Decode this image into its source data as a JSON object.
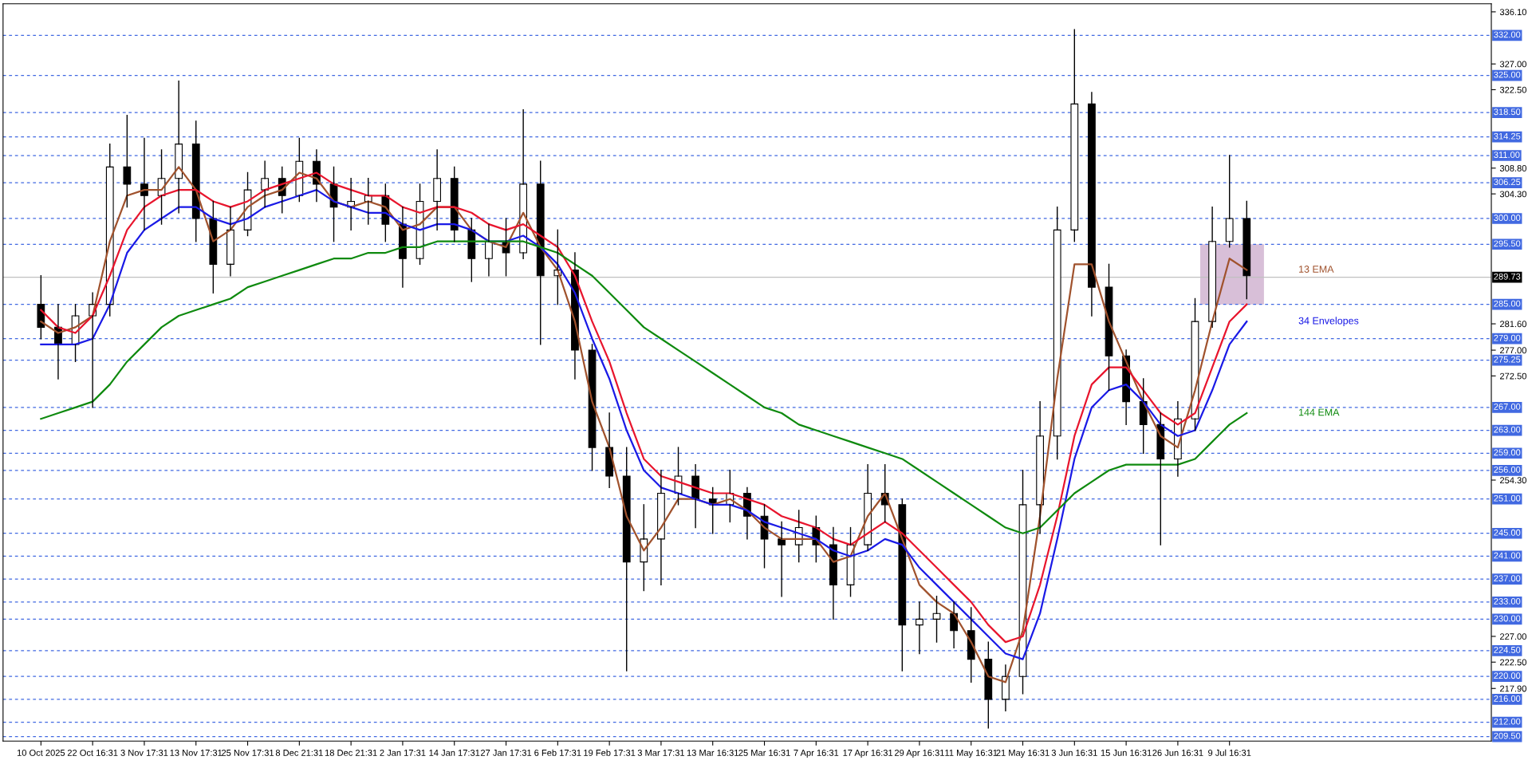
{
  "chart_data": {
    "type": "candlestick",
    "categories": [
      "10 Oct 2025",
      null,
      null,
      "22 Oct 16:31",
      null,
      null,
      "3 Nov 17:31",
      null,
      null,
      "13 Nov 17:31",
      null,
      null,
      "25 Nov 17:31",
      null,
      null,
      "8 Dec 21:31",
      null,
      null,
      "18 Dec 21:31",
      null,
      null,
      "2 Jan 17:31",
      null,
      null,
      "14 Jan 17:31",
      null,
      null,
      "27 Jan 17:31",
      null,
      null,
      "6 Feb 17:31",
      null,
      null,
      "19 Feb 17:31",
      null,
      null,
      "3 Mar 17:31",
      null,
      null,
      "13 Mar 16:31",
      null,
      null,
      "25 Mar 16:31",
      null,
      null,
      "7 Apr 16:31",
      null,
      null,
      "17 Apr 16:31",
      null,
      null,
      "29 Apr 16:31",
      null,
      null,
      "11 May 16:31",
      null,
      null,
      "21 May 16:31",
      null,
      null,
      "3 Jun 16:31",
      null,
      null,
      "15 Jun 16:31",
      null,
      null,
      "26 Jun 16:31",
      null,
      null,
      "9 Jul 16:31",
      null
    ],
    "ohlc": [
      [
        285,
        290,
        279,
        281
      ],
      [
        281,
        285,
        272,
        278
      ],
      [
        278,
        285,
        275,
        283
      ],
      [
        283,
        287,
        267,
        285
      ],
      [
        285,
        313,
        283,
        309
      ],
      [
        309,
        318,
        302,
        306
      ],
      [
        306,
        314,
        298,
        304
      ],
      [
        304,
        312,
        299,
        307
      ],
      [
        307,
        324,
        301,
        313
      ],
      [
        313,
        317,
        296,
        300
      ],
      [
        300,
        303,
        287,
        292
      ],
      [
        292,
        302,
        290,
        298
      ],
      [
        298,
        308,
        297,
        305
      ],
      [
        305,
        310,
        302,
        307
      ],
      [
        307,
        309,
        301,
        304
      ],
      [
        304,
        314,
        303,
        310
      ],
      [
        310,
        312,
        303,
        306
      ],
      [
        306,
        309,
        296,
        302
      ],
      [
        302,
        307,
        298,
        303
      ],
      [
        303,
        307,
        299,
        304
      ],
      [
        304,
        306,
        296,
        299
      ],
      [
        299,
        302,
        288,
        293
      ],
      [
        293,
        306,
        292,
        303
      ],
      [
        303,
        312,
        298,
        307
      ],
      [
        307,
        309,
        296,
        298
      ],
      [
        298,
        300,
        289,
        293
      ],
      [
        293,
        299,
        290,
        296
      ],
      [
        296,
        300,
        290,
        294
      ],
      [
        294,
        319,
        293,
        306
      ],
      [
        306,
        310,
        278,
        290
      ],
      [
        290,
        298,
        285,
        291
      ],
      [
        291,
        294,
        272,
        277
      ],
      [
        277,
        278,
        256,
        260
      ],
      [
        260,
        266,
        253,
        255
      ],
      [
        255,
        260,
        221,
        240
      ],
      [
        240,
        250,
        235,
        244
      ],
      [
        244,
        256,
        236,
        252
      ],
      [
        252,
        260,
        250,
        255
      ],
      [
        255,
        257,
        246,
        251
      ],
      [
        251,
        253,
        245,
        250
      ],
      [
        250,
        256,
        247,
        252
      ],
      [
        252,
        253,
        244,
        248
      ],
      [
        248,
        250,
        239,
        244
      ],
      [
        244,
        247,
        234,
        243
      ],
      [
        243,
        249,
        240,
        246
      ],
      [
        246,
        248,
        240,
        243
      ],
      [
        243,
        246,
        230,
        236
      ],
      [
        236,
        246,
        234,
        243
      ],
      [
        243,
        257,
        242,
        252
      ],
      [
        252,
        257,
        247,
        250
      ],
      [
        250,
        251,
        221,
        229
      ],
      [
        229,
        233,
        224,
        230
      ],
      [
        230,
        234,
        226,
        231
      ],
      [
        231,
        233,
        225,
        228
      ],
      [
        228,
        232,
        219,
        223
      ],
      [
        223,
        226,
        211,
        216
      ],
      [
        216,
        222,
        214,
        220
      ],
      [
        220,
        256,
        217,
        250
      ],
      [
        250,
        268,
        245,
        262
      ],
      [
        262,
        302,
        258,
        298
      ],
      [
        298,
        333,
        296,
        320
      ],
      [
        320,
        322,
        283,
        288
      ],
      [
        288,
        292,
        270,
        276
      ],
      [
        276,
        277,
        264,
        268
      ],
      [
        268,
        272,
        259,
        264
      ],
      [
        264,
        266,
        243,
        258
      ],
      [
        258,
        268,
        255,
        265
      ],
      [
        265,
        286,
        263,
        282
      ],
      [
        282,
        302,
        281,
        296
      ],
      [
        296,
        311,
        295,
        300
      ],
      [
        300,
        303,
        286,
        290
      ]
    ],
    "color": "#000000",
    "series": [
      {
        "name": "13 EMA",
        "type": "line",
        "color": "#a0522d",
        "values": [
          282,
          280,
          281,
          283,
          296,
          304,
          305,
          305,
          309,
          305,
          296,
          298,
          302,
          304,
          305,
          308,
          307,
          303,
          302,
          303,
          302,
          298,
          299,
          302,
          302,
          298,
          296,
          295,
          301,
          295,
          291,
          282,
          268,
          260,
          248,
          242,
          246,
          251,
          251,
          250,
          251,
          249,
          246,
          244,
          244,
          244,
          240,
          241,
          248,
          252,
          244,
          236,
          233,
          231,
          226,
          220,
          219,
          228,
          248,
          272,
          292,
          292,
          282,
          275,
          268,
          262,
          260,
          270,
          282,
          293,
          291
        ]
      },
      {
        "type": "line",
        "color": "#e8152d",
        "values": [
          284,
          281,
          280,
          283,
          290,
          298,
          302,
          304,
          305,
          305,
          303,
          302,
          303,
          305,
          306,
          307,
          308,
          306,
          305,
          304,
          304,
          302,
          301,
          302,
          302,
          301,
          299,
          298,
          299,
          297,
          295,
          290,
          282,
          275,
          266,
          258,
          255,
          254,
          253,
          252,
          252,
          251,
          250,
          248,
          247,
          246,
          244,
          243,
          245,
          247,
          245,
          242,
          239,
          236,
          233,
          229,
          226,
          227,
          236,
          248,
          262,
          271,
          274,
          274,
          270,
          266,
          264,
          266,
          274,
          282,
          285
        ]
      },
      {
        "name": "34 Envelopes",
        "type": "line",
        "color": "#1a1ae6",
        "values": [
          278,
          278,
          278,
          279,
          285,
          294,
          298,
          300,
          302,
          302,
          300,
          299,
          300,
          302,
          303,
          304,
          305,
          303,
          302,
          301,
          301,
          299,
          298,
          299,
          299,
          298,
          296,
          296,
          297,
          295,
          292,
          287,
          279,
          272,
          263,
          256,
          253,
          252,
          251,
          250,
          250,
          249,
          247,
          246,
          245,
          244,
          242,
          241,
          242,
          244,
          243,
          239,
          236,
          233,
          230,
          227,
          224,
          223,
          231,
          244,
          258,
          267,
          270,
          271,
          268,
          264,
          262,
          263,
          270,
          278,
          282
        ]
      },
      {
        "name": "144 EMA",
        "type": "line",
        "color": "#0f8a0f",
        "values": [
          265,
          266,
          267,
          268,
          271,
          275,
          278,
          281,
          283,
          284,
          285,
          286,
          288,
          289,
          290,
          291,
          292,
          293,
          293,
          294,
          294,
          295,
          295,
          296,
          296,
          296,
          296,
          296,
          296,
          295,
          294,
          292,
          290,
          287,
          284,
          281,
          279,
          277,
          275,
          273,
          271,
          269,
          267,
          266,
          264,
          263,
          262,
          261,
          260,
          259,
          258,
          256,
          254,
          252,
          250,
          248,
          246,
          245,
          246,
          249,
          252,
          254,
          256,
          257,
          257,
          257,
          257,
          258,
          261,
          264,
          266
        ]
      }
    ],
    "ylim": [
      208.7,
      337.5
    ],
    "yticks": [
      {
        "value": 336.1,
        "label": "336.10"
      },
      {
        "value": 327,
        "label": "327.00"
      },
      {
        "value": 322.5,
        "label": "322.50"
      },
      {
        "value": 308.8,
        "label": "308.80"
      },
      {
        "value": 304.3,
        "label": "304.30"
      },
      {
        "value": 281.6,
        "label": "281.60"
      },
      {
        "value": 277,
        "label": "277.00"
      },
      {
        "value": 272.5,
        "label": "272.50"
      },
      {
        "value": 254.3,
        "label": "254.30"
      },
      {
        "value": 227,
        "label": "227.00"
      },
      {
        "value": 222.5,
        "label": "222.50"
      },
      {
        "value": 217.9,
        "label": "217.90"
      }
    ],
    "ref_lines": [
      {
        "axis": "y",
        "value": 332,
        "label": "332.00",
        "color": "#4169e1",
        "line_style": "dashed"
      },
      {
        "axis": "y",
        "value": 325,
        "label": "325.00",
        "color": "#4169e1",
        "line_style": "dashed"
      },
      {
        "axis": "y",
        "value": 318.5,
        "label": "318.50",
        "color": "#4169e1",
        "line_style": "dashed"
      },
      {
        "axis": "y",
        "value": 314.25,
        "label": "314.25",
        "color": "#4169e1",
        "line_style": "dashed"
      },
      {
        "axis": "y",
        "value": 311,
        "label": "311.00",
        "color": "#4169e1",
        "line_style": "dashed"
      },
      {
        "axis": "y",
        "value": 306.25,
        "label": "306.25",
        "color": "#4169e1",
        "line_style": "dashed"
      },
      {
        "axis": "y",
        "value": 300,
        "label": "300.00",
        "color": "#4169e1",
        "line_style": "dashed"
      },
      {
        "axis": "y",
        "value": 295.5,
        "label": "295.50",
        "color": "#4169e1",
        "line_style": "dashed"
      },
      {
        "axis": "y",
        "value": 289.73,
        "label": "289.73",
        "color": "#c0c0c0",
        "line_style": "solid"
      },
      {
        "axis": "y",
        "value": 285,
        "label": "285.00",
        "color": "#4169e1",
        "line_style": "dashed"
      },
      {
        "axis": "y",
        "value": 279,
        "label": "279.00",
        "color": "#4169e1",
        "line_style": "dashed"
      },
      {
        "axis": "y",
        "value": 275.25,
        "label": "275.25",
        "color": "#4169e1",
        "line_style": "dashed"
      },
      {
        "axis": "y",
        "value": 267,
        "label": "267.00",
        "color": "#4169e1",
        "line_style": "dashed"
      },
      {
        "axis": "y",
        "value": 263,
        "label": "263.00",
        "color": "#4169e1",
        "line_style": "dashed"
      },
      {
        "axis": "y",
        "value": 259,
        "label": "259.00",
        "color": "#4169e1",
        "line_style": "dashed"
      },
      {
        "axis": "y",
        "value": 256,
        "label": "256.00",
        "color": "#4169e1",
        "line_style": "dashed"
      },
      {
        "axis": "y",
        "value": 251,
        "label": "251.00",
        "color": "#4169e1",
        "line_style": "dashed"
      },
      {
        "axis": "y",
        "value": 245,
        "label": "245.00",
        "color": "#4169e1",
        "line_style": "dashed"
      },
      {
        "axis": "y",
        "value": 241,
        "label": "241.00",
        "color": "#4169e1",
        "line_style": "dashed"
      },
      {
        "axis": "y",
        "value": 237,
        "label": "237.00",
        "color": "#4169e1",
        "line_style": "dashed"
      },
      {
        "axis": "y",
        "value": 233,
        "label": "233.00",
        "color": "#4169e1",
        "line_style": "dashed"
      },
      {
        "axis": "y",
        "value": 230,
        "label": "230.00",
        "color": "#4169e1",
        "line_style": "dashed"
      },
      {
        "axis": "y",
        "value": 224.5,
        "label": "224.50",
        "color": "#4169e1",
        "line_style": "dashed"
      },
      {
        "axis": "y",
        "value": 220,
        "label": "220.00",
        "color": "#4169e1",
        "line_style": "dashed"
      },
      {
        "axis": "y",
        "value": 216,
        "label": "216.00",
        "color": "#4169e1",
        "line_style": "dashed"
      },
      {
        "axis": "y",
        "value": 212,
        "label": "212.00",
        "color": "#4169e1",
        "line_style": "dashed"
      },
      {
        "axis": "y",
        "value": 209.5,
        "label": "209.50",
        "color": "#4169e1",
        "line_style": "dashed"
      }
    ],
    "bands": [
      {
        "axis": "y",
        "from": 285,
        "to": 295.5,
        "color": "#d8bfd8"
      }
    ],
    "grid": false,
    "legend": false
  }
}
